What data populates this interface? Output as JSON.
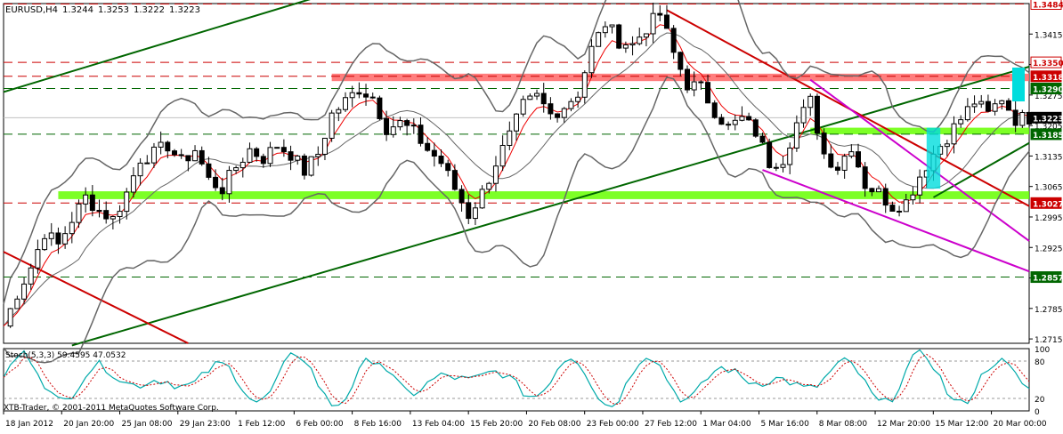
{
  "chart_data": {
    "type": "candlestick",
    "symbol": "EURUSD,H4",
    "ohlc": [
      "1.3244",
      "1.3253",
      "1.3222",
      "1.3223"
    ],
    "copyright": "XTB-Trader, © 2001-2011 MetaQuotes Software Corp.",
    "y_ticks": [
      "1.3415",
      "1.3345",
      "1.3275",
      "1.3205",
      "1.3135",
      "1.3065",
      "1.2995",
      "1.2925",
      "1.2855",
      "1.2785",
      "1.2715"
    ],
    "x_ticks": [
      "18 Jan 2012",
      "20 Jan 20:00",
      "25 Jan 08:00",
      "29 Jan 23:00",
      "1 Feb 12:00",
      "6 Feb 00:00",
      "8 Feb 16:00",
      "13 Feb 04:00",
      "15 Feb 20:00",
      "20 Feb 08:00",
      "23 Feb 00:00",
      "27 Feb 12:00",
      "1 Mar 04:00",
      "5 Mar 16:00",
      "8 Mar 08:00",
      "12 Mar 20:00",
      "15 Mar 12:00",
      "20 Mar 00:00"
    ],
    "ylim": [
      1.2705,
      1.3485
    ],
    "levels": [
      {
        "value": 1.3484,
        "label": "1.3484",
        "color": "#cc0000",
        "fill": "#ffffff",
        "text_color": "#cc0000"
      },
      {
        "value": 1.335,
        "label": "1.3350",
        "color": "#cc0000",
        "fill": "#ffffff",
        "text_color": "#cc0000"
      },
      {
        "value": 1.3318,
        "label": "1.3318",
        "color": "#cc0000",
        "fill": "#cc0000",
        "text_color": "#ffffff"
      },
      {
        "value": 1.329,
        "label": "1.3290",
        "color": "#006600",
        "fill": "#006600",
        "text_color": "#ffffff"
      },
      {
        "value": 1.3223,
        "label": "1.3223",
        "color": "#000000",
        "fill": "#000000",
        "text_color": "#ffffff"
      },
      {
        "value": 1.3185,
        "label": "1.3185",
        "color": "#006600",
        "fill": "#006600",
        "text_color": "#ffffff"
      },
      {
        "value": 1.3027,
        "label": "1.3027",
        "color": "#cc0000",
        "fill": "#cc0000",
        "text_color": "#ffffff"
      },
      {
        "value": 1.2857,
        "label": "1.2857",
        "color": "#006600",
        "fill": "#006600",
        "text_color": "#ffffff"
      }
    ],
    "zones": [
      {
        "from": 1.3036,
        "to": 1.3054,
        "color": "#66ff00",
        "t_from": 8,
        "t_to": 150
      },
      {
        "from": 1.3185,
        "to": 1.32,
        "color": "#66ff00",
        "t_from": 118,
        "t_to": 150
      },
      {
        "from": 1.3307,
        "to": 1.3324,
        "color": "#ff6666",
        "t_from": 48,
        "t_to": 150
      }
    ],
    "trendlines": [
      {
        "t1": 0,
        "v1": 1.3282,
        "t2": 56,
        "v2": 1.3548,
        "color": "#006600"
      },
      {
        "t1": 10,
        "v1": 1.27,
        "t2": 150,
        "v2": 1.334,
        "color": "#006600"
      },
      {
        "t1": 136,
        "v1": 1.304,
        "t2": 150,
        "v2": 1.3165,
        "color": "#006600"
      },
      {
        "t1": 0,
        "v1": 1.2915,
        "t2": 27,
        "v2": 1.2705,
        "color": "#cc0000"
      },
      {
        "t1": 97,
        "v1": 1.347,
        "t2": 150,
        "v2": 1.302,
        "color": "#cc0000"
      },
      {
        "t1": 118,
        "v1": 1.331,
        "t2": 150,
        "v2": 1.294,
        "color": "#cc00cc"
      },
      {
        "t1": 111,
        "v1": 1.3103,
        "t2": 150,
        "v2": 1.287,
        "color": "#cc00cc"
      }
    ],
    "marker_rect": {
      "t_from": 135,
      "t_to": 137,
      "from": 1.306,
      "to": 1.32,
      "color": "#00dddd"
    },
    "price_series": [
      [
        0,
        1.2745
      ],
      [
        2,
        1.282
      ],
      [
        4,
        1.288
      ],
      [
        6,
        1.296
      ],
      [
        8,
        1.293
      ],
      [
        10,
        1.299
      ],
      [
        12,
        1.304
      ],
      [
        14,
        1.301
      ],
      [
        16,
        1.299
      ],
      [
        18,
        1.305
      ],
      [
        20,
        1.313
      ],
      [
        22,
        1.314
      ],
      [
        24,
        1.316
      ],
      [
        26,
        1.312
      ],
      [
        28,
        1.315
      ],
      [
        30,
        1.308
      ],
      [
        32,
        1.306
      ],
      [
        34,
        1.311
      ],
      [
        36,
        1.315
      ],
      [
        38,
        1.313
      ],
      [
        40,
        1.316
      ],
      [
        42,
        1.314
      ],
      [
        44,
        1.31
      ],
      [
        46,
        1.314
      ],
      [
        48,
        1.323
      ],
      [
        50,
        1.326
      ],
      [
        52,
        1.329
      ],
      [
        54,
        1.327
      ],
      [
        56,
        1.32
      ],
      [
        58,
        1.321
      ],
      [
        60,
        1.319
      ],
      [
        62,
        1.315
      ],
      [
        64,
        1.312
      ],
      [
        66,
        1.306
      ],
      [
        68,
        1.3
      ],
      [
        70,
        1.305
      ],
      [
        72,
        1.312
      ],
      [
        74,
        1.318
      ],
      [
        76,
        1.325
      ],
      [
        78,
        1.327
      ],
      [
        80,
        1.323
      ],
      [
        82,
        1.325
      ],
      [
        84,
        1.328
      ],
      [
        86,
        1.338
      ],
      [
        88,
        1.344
      ],
      [
        90,
        1.34
      ],
      [
        92,
        1.339
      ],
      [
        94,
        1.343
      ],
      [
        96,
        1.346
      ],
      [
        98,
        1.337
      ],
      [
        100,
        1.33
      ],
      [
        102,
        1.329
      ],
      [
        104,
        1.324
      ],
      [
        106,
        1.32
      ],
      [
        108,
        1.322
      ],
      [
        110,
        1.319
      ],
      [
        112,
        1.312
      ],
      [
        114,
        1.313
      ],
      [
        116,
        1.321
      ],
      [
        118,
        1.326
      ],
      [
        120,
        1.314
      ],
      [
        122,
        1.311
      ],
      [
        124,
        1.316
      ],
      [
        126,
        1.307
      ],
      [
        128,
        1.305
      ],
      [
        130,
        1.302
      ],
      [
        132,
        1.303
      ],
      [
        134,
        1.309
      ],
      [
        136,
        1.314
      ],
      [
        138,
        1.318
      ],
      [
        140,
        1.322
      ],
      [
        142,
        1.326
      ],
      [
        144,
        1.323
      ],
      [
        146,
        1.327
      ],
      [
        148,
        1.322
      ],
      [
        150,
        1.3223
      ]
    ],
    "indicator": {
      "label": "Stoch(5,3,3) 59.4595 47.0532",
      "y_ticks": [
        "100",
        "80",
        "20",
        "0"
      ],
      "levels": [
        80,
        20
      ],
      "main_color": "#00aaaa",
      "signal_color": "#cc0000"
    }
  }
}
